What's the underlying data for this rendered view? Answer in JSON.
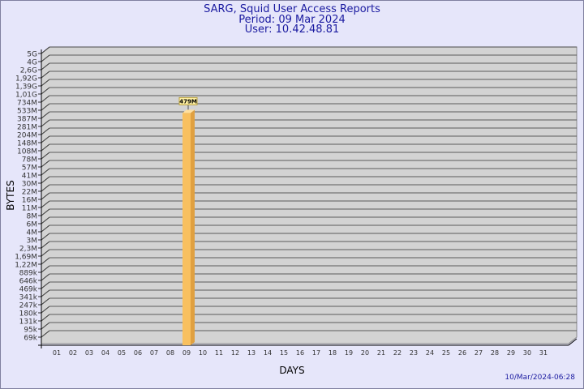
{
  "title": "SARG, Squid User Access Reports",
  "period": "Period: 09 Mar 2024",
  "user": "User: 10.42.48.81",
  "timestamp": "10/Mar/2024-06:28",
  "chart_data": {
    "type": "bar",
    "xlabel": "DAYS",
    "ylabel": "BYTES",
    "y_scale": "log",
    "y_ticks": [
      "5G",
      "4G",
      "2,6G",
      "1,92G",
      "1,39G",
      "1,01G",
      "734M",
      "533M",
      "387M",
      "281M",
      "204M",
      "148M",
      "108M",
      "78M",
      "57M",
      "41M",
      "30M",
      "22M",
      "16M",
      "11M",
      "8M",
      "6M",
      "4M",
      "3M",
      "2,3M",
      "1,69M",
      "1,22M",
      "889k",
      "646k",
      "469k",
      "341k",
      "247k",
      "180k",
      "131k",
      "95k",
      "69k"
    ],
    "categories": [
      "01",
      "02",
      "03",
      "04",
      "05",
      "06",
      "07",
      "08",
      "09",
      "10",
      "11",
      "12",
      "13",
      "14",
      "15",
      "16",
      "17",
      "18",
      "19",
      "20",
      "21",
      "22",
      "23",
      "24",
      "25",
      "26",
      "27",
      "28",
      "29",
      "30",
      "31"
    ],
    "bars": [
      {
        "category": "09",
        "value_label": "479M",
        "value": 479000000
      }
    ],
    "grid": true,
    "colors": {
      "bar": "#f8c060",
      "bar_side": "#e0a040",
      "plot_bg": "#d3d3d3",
      "text": "#1a1aa0"
    }
  }
}
